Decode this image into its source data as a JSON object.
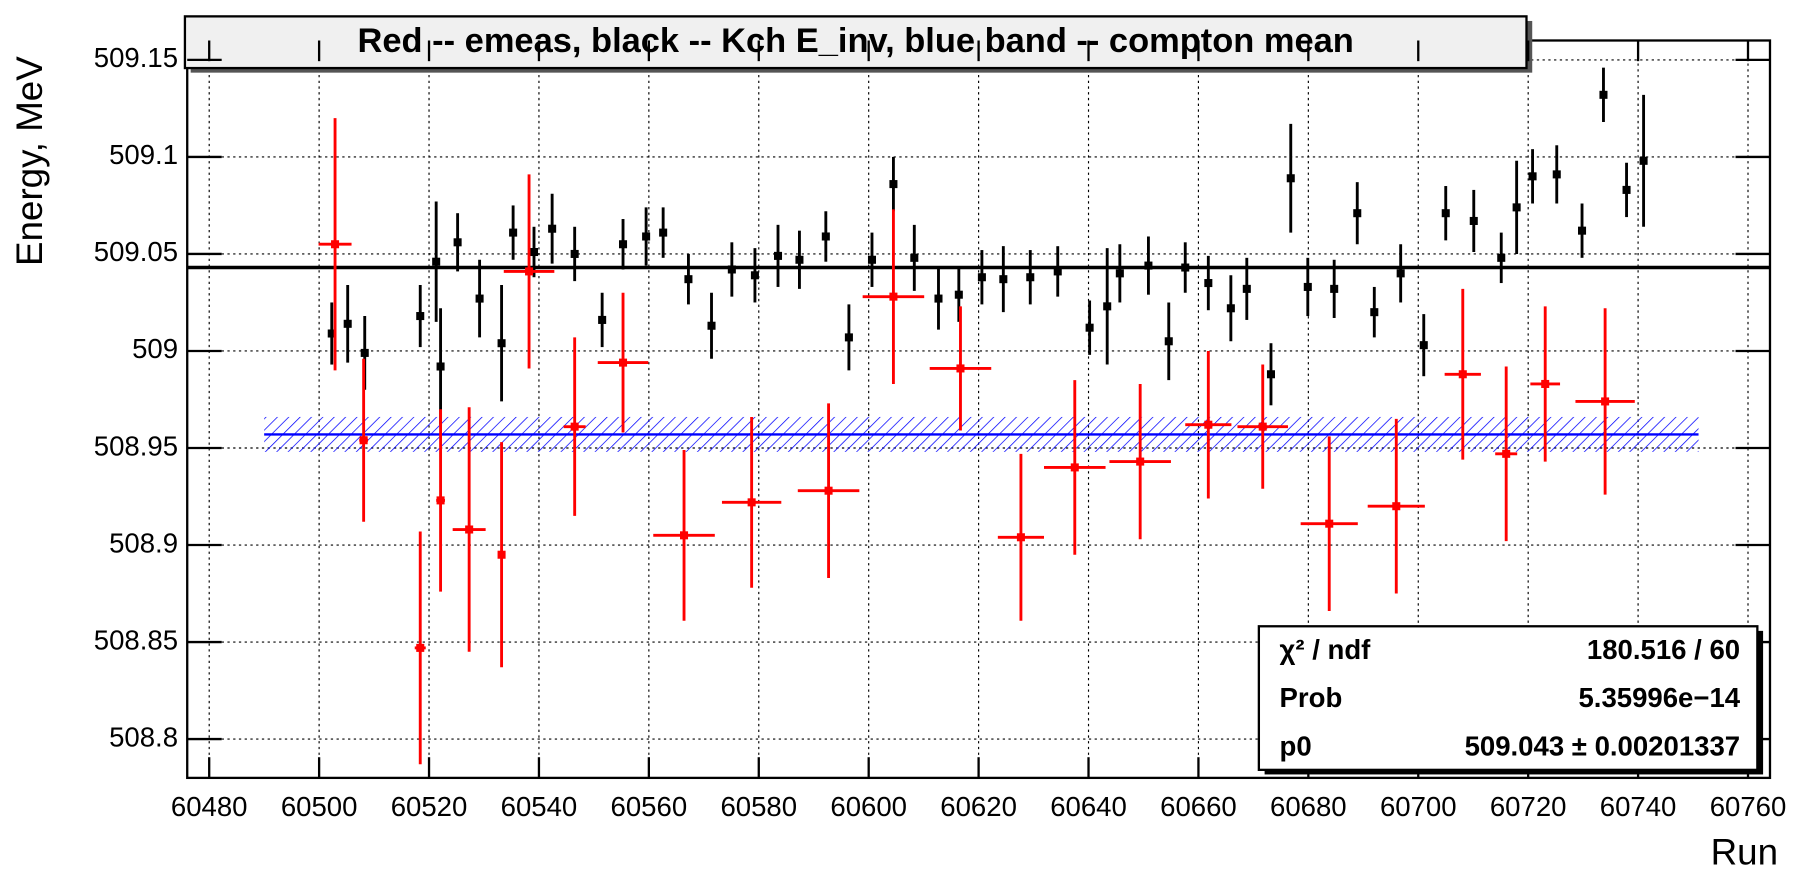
{
  "chart_data": {
    "type": "errorbar",
    "title": "Red -- emeas, black -- Kch E_inv, blue band -- compton mean",
    "xlabel": "Run",
    "ylabel": "Energy, MeV",
    "xlim": [
      60476,
      60764
    ],
    "ylim": [
      508.78,
      509.16
    ],
    "xticks": [
      60480,
      60500,
      60520,
      60540,
      60560,
      60580,
      60600,
      60620,
      60640,
      60660,
      60680,
      60700,
      60720,
      60740,
      60760
    ],
    "yticks": [
      508.8,
      508.85,
      508.9,
      508.95,
      509,
      509.05,
      509.1,
      509.15
    ],
    "grid": true,
    "series": [
      {
        "color": "#000000",
        "x": [
          60502.3,
          60505.2,
          60508.3,
          60518.4,
          60521.3,
          60522.1,
          60525.2,
          60529.2,
          60533.2,
          60535.3,
          60539.1,
          60542.4,
          60546.5,
          60551.5,
          60555.3,
          60559.5,
          60562.6,
          60567.2,
          60571.4,
          60575.1,
          60579.3,
          60583.5,
          60587.4,
          60592.2,
          60596.4,
          60600.6,
          60604.5,
          60608.3,
          60612.7,
          60616.4,
          60620.6,
          60624.5,
          60629.4,
          60634.4,
          60640.2,
          60643.4,
          60645.7,
          60650.9,
          60654.6,
          60657.6,
          60661.8,
          60665.9,
          60668.8,
          60673.2,
          60676.8,
          60679.9,
          60684.7,
          60688.9,
          60692.0,
          60696.8,
          60701.0,
          60705.0,
          60710.1,
          60715.1,
          60717.9,
          60720.8,
          60725.2,
          60729.8,
          60733.7,
          60737.9,
          60741.0
        ],
        "values": [
          509.009,
          509.014,
          508.999,
          509.018,
          509.046,
          508.992,
          509.056,
          509.027,
          509.004,
          509.061,
          509.051,
          509.063,
          509.05,
          509.016,
          509.055,
          509.059,
          509.061,
          509.037,
          509.013,
          509.042,
          509.039,
          509.049,
          509.047,
          509.059,
          509.007,
          509.047,
          509.086,
          509.048,
          509.027,
          509.029,
          509.038,
          509.037,
          509.038,
          509.041,
          509.012,
          509.023,
          509.04,
          509.044,
          509.005,
          509.043,
          509.035,
          509.022,
          509.032,
          508.988,
          509.089,
          509.033,
          509.032,
          509.071,
          509.02,
          509.04,
          509.003,
          509.071,
          509.067,
          509.048,
          509.074,
          509.09,
          509.091,
          509.062,
          509.132,
          509.083,
          509.098
        ],
        "errors": [
          0.016,
          0.02,
          0.019,
          0.016,
          0.031,
          0.03,
          0.015,
          0.02,
          0.03,
          0.014,
          0.013,
          0.018,
          0.014,
          0.014,
          0.013,
          0.015,
          0.013,
          0.013,
          0.017,
          0.014,
          0.014,
          0.016,
          0.015,
          0.013,
          0.017,
          0.014,
          0.014,
          0.017,
          0.016,
          0.014,
          0.014,
          0.017,
          0.014,
          0.013,
          0.014,
          0.03,
          0.015,
          0.015,
          0.02,
          0.013,
          0.014,
          0.017,
          0.016,
          0.016,
          0.028,
          0.015,
          0.015,
          0.016,
          0.013,
          0.015,
          0.016,
          0.014,
          0.016,
          0.013,
          0.024,
          0.014,
          0.015,
          0.014,
          0.014,
          0.014,
          0.034
        ]
      },
      {
        "color": "#ff0000",
        "x": [
          60502.9,
          60508.1,
          60518.4,
          60522.1,
          60527.3,
          60533.2,
          60538.2,
          60546.5,
          60555.3,
          60566.4,
          60578.7,
          60592.7,
          60604.5,
          60616.7,
          60627.7,
          60637.5,
          60649.4,
          60661.8,
          60671.7,
          60683.8,
          60696.0,
          60708.1,
          60716.0,
          60723.1,
          60734.0
        ],
        "xerrors": [
          3,
          0.8,
          1,
          0.8,
          3,
          0.6,
          4.6,
          2,
          4.6,
          5.6,
          5.4,
          5.6,
          5.6,
          5.6,
          4.2,
          5.6,
          5.6,
          4.2,
          4.6,
          5.2,
          5.2,
          3.3,
          2,
          2.7,
          5.4
        ],
        "values": [
          509.055,
          508.954,
          508.847,
          508.923,
          508.908,
          508.895,
          509.041,
          508.961,
          508.994,
          508.905,
          508.922,
          508.928,
          509.028,
          508.991,
          508.904,
          508.94,
          508.943,
          508.962,
          508.961,
          508.911,
          508.92,
          508.988,
          508.947,
          508.983,
          508.974
        ],
        "errors": [
          0.065,
          0.042,
          0.06,
          0.047,
          0.063,
          0.058,
          0.05,
          0.046,
          0.036,
          0.044,
          0.044,
          0.045,
          0.045,
          0.032,
          0.043,
          0.045,
          0.04,
          0.038,
          0.032,
          0.045,
          0.045,
          0.044,
          0.045,
          0.04,
          0.048
        ]
      }
    ],
    "fit": {
      "value": 509.043,
      "color": "#000000"
    },
    "band": {
      "xrange": [
        60490,
        60751
      ],
      "mean": 508.957,
      "error": 0.009,
      "color": "#0000ff"
    },
    "stats": [
      [
        "χ² / ndf",
        "180.516 / 60"
      ],
      [
        "Prob",
        "5.35996e−14"
      ],
      [
        "p0",
        "509.043 ± 0.00201337"
      ]
    ]
  }
}
